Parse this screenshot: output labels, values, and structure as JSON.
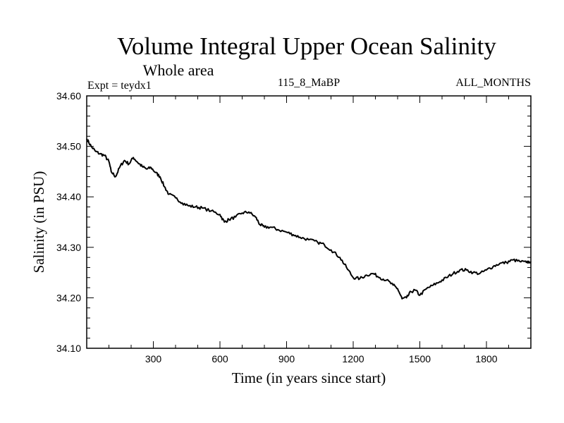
{
  "chart_data": {
    "type": "line",
    "title": "Volume Integral Upper Ocean Salinity",
    "subtitle": "Whole area",
    "left_label": "Expt = teydx1",
    "center_label": "115_8_MaBP",
    "right_label": "ALL_MONTHS",
    "xlabel": "Time (in years since start)",
    "ylabel": "Salinity (in PSU)",
    "xlim": [
      0,
      2000
    ],
    "ylim": [
      34.1,
      34.6
    ],
    "x_ticks": [
      300,
      600,
      900,
      1200,
      1500,
      1800
    ],
    "x_tick_labels": [
      "300",
      "600",
      "900",
      "1200",
      "1500",
      "1800"
    ],
    "y_ticks": [
      34.1,
      34.2,
      34.3,
      34.4,
      34.5,
      34.6
    ],
    "y_tick_labels": [
      "34.10",
      "34.20",
      "34.30",
      "34.40",
      "34.50",
      "34.60"
    ],
    "x_minor_step": 100,
    "y_minor_step": 0.02,
    "series": [
      {
        "name": "Volume Integral Upper Ocean Salinity",
        "x": [
          0,
          20,
          40,
          60,
          80,
          100,
          110,
          130,
          150,
          170,
          190,
          210,
          230,
          250,
          270,
          290,
          310,
          330,
          350,
          370,
          400,
          430,
          460,
          490,
          520,
          560,
          600,
          620,
          640,
          670,
          700,
          730,
          760,
          780,
          800,
          830,
          860,
          900,
          930,
          960,
          1000,
          1040,
          1070,
          1100,
          1140,
          1170,
          1200,
          1230,
          1260,
          1290,
          1320,
          1350,
          1380,
          1400,
          1420,
          1440,
          1460,
          1480,
          1500,
          1530,
          1560,
          1590,
          1620,
          1650,
          1680,
          1710,
          1740,
          1770,
          1800,
          1830,
          1860,
          1890,
          1920,
          1950,
          1980,
          2000
        ],
        "y": [
          34.515,
          34.5,
          34.49,
          34.485,
          34.482,
          34.47,
          34.45,
          34.44,
          34.46,
          34.472,
          34.465,
          34.478,
          34.468,
          34.46,
          34.455,
          34.458,
          34.448,
          34.44,
          34.42,
          34.405,
          34.398,
          34.388,
          34.382,
          34.38,
          34.378,
          34.372,
          34.365,
          34.35,
          34.355,
          34.36,
          34.368,
          34.37,
          34.36,
          34.345,
          34.34,
          34.34,
          34.335,
          34.33,
          34.325,
          34.32,
          34.315,
          34.31,
          34.305,
          34.295,
          34.28,
          34.26,
          34.24,
          34.238,
          34.245,
          34.248,
          34.24,
          34.235,
          34.225,
          34.218,
          34.198,
          34.2,
          34.212,
          34.215,
          34.205,
          34.218,
          34.225,
          34.232,
          34.24,
          34.248,
          34.255,
          34.255,
          34.25,
          34.248,
          34.255,
          34.262,
          34.268,
          34.27,
          34.275,
          34.272,
          34.27,
          34.272
        ]
      }
    ]
  }
}
